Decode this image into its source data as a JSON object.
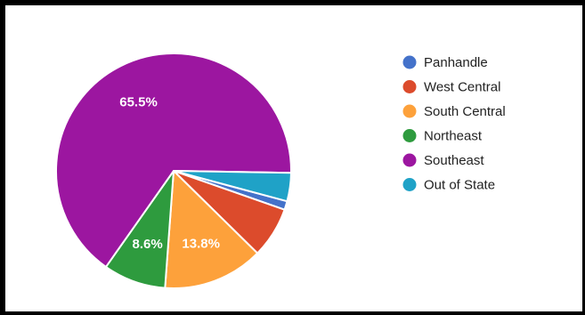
{
  "chart_data": {
    "type": "pie",
    "title": "",
    "legend_position": "right",
    "slices": [
      {
        "label": "Panhandle",
        "value": 1.2,
        "color": "#4472CA",
        "data_label": ""
      },
      {
        "label": "West Central",
        "value": 7.0,
        "color": "#DC4B2C",
        "data_label": ""
      },
      {
        "label": "South Central",
        "value": 13.8,
        "color": "#FDA13B",
        "data_label": "13.8%"
      },
      {
        "label": "Northeast",
        "value": 8.6,
        "color": "#2E9B3E",
        "data_label": "8.6%"
      },
      {
        "label": "Southeast",
        "value": 65.5,
        "color": "#9C16A0",
        "data_label": "65.5%"
      },
      {
        "label": "Out of State",
        "value": 3.9,
        "color": "#1FA2C7",
        "data_label": ""
      }
    ]
  }
}
